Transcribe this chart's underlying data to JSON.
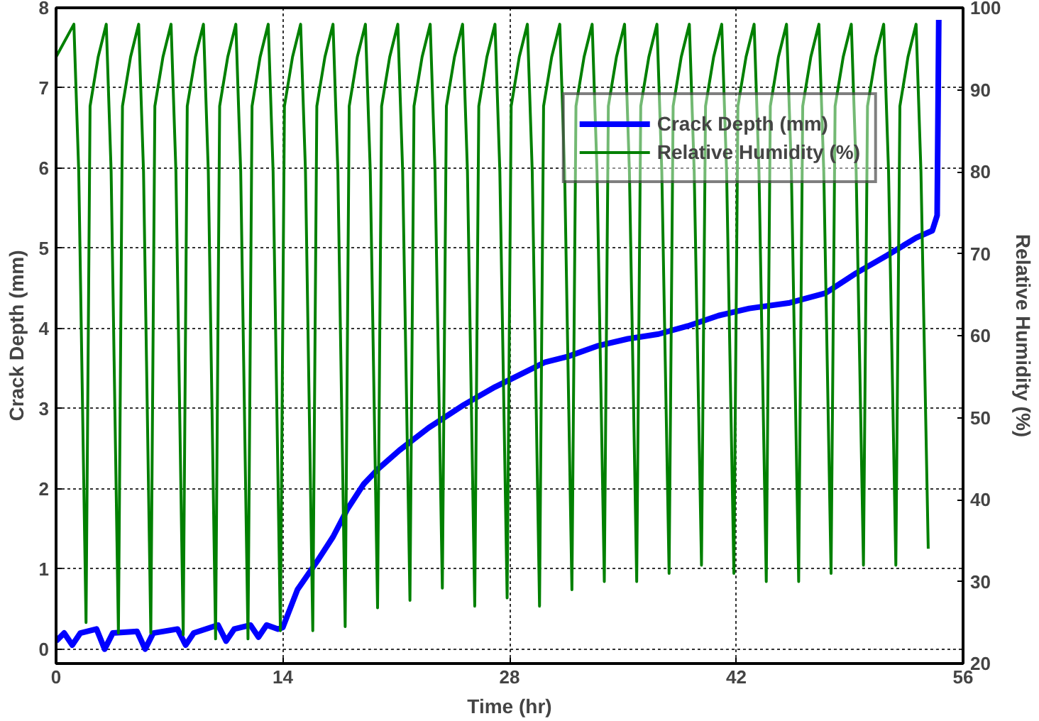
{
  "chart_data": {
    "type": "line",
    "xlabel": "Time (hr)",
    "ylabel": "Crack Depth (mm)",
    "y2label": "Relative Humidity (%)",
    "xlim": [
      0,
      56
    ],
    "xticks": [
      0,
      14,
      28,
      42,
      56
    ],
    "ylim": [
      -0.18,
      8
    ],
    "yticks": [
      0,
      1,
      2,
      3,
      4,
      5,
      6,
      7,
      8
    ],
    "y2lim": [
      20,
      100
    ],
    "y2ticks": [
      20,
      30,
      40,
      50,
      60,
      70,
      80,
      90,
      100
    ],
    "grid": true,
    "legend": "top right",
    "marker": "none",
    "line_style": "solid",
    "series": [
      {
        "name": "Crack Depth (mm)",
        "color": "#0000ff",
        "x": [
          0,
          0.5,
          1,
          1.5,
          2.5,
          3,
          3.5,
          5,
          5.5,
          6,
          7.5,
          8,
          8.5,
          10,
          10.5,
          11,
          12,
          12.5,
          13,
          13.7,
          14,
          14.9,
          16.2,
          17.1,
          18,
          19,
          19.9,
          21.2,
          23,
          25.2,
          27.1,
          29,
          30.2,
          31.6,
          33.4,
          35.3,
          37.2,
          39,
          40.9,
          42.8,
          45.3,
          47.5,
          49.4,
          51.3,
          53.1,
          54.1,
          54.4,
          54.5
        ],
        "values": [
          0.1,
          0.2,
          0.05,
          0.2,
          0.25,
          0,
          0.2,
          0.22,
          0,
          0.2,
          0.25,
          0.05,
          0.2,
          0.3,
          0.1,
          0.25,
          0.3,
          0.15,
          0.3,
          0.25,
          0.27,
          0.74,
          1.12,
          1.4,
          1.75,
          2.06,
          2.25,
          2.48,
          2.76,
          3.05,
          3.27,
          3.46,
          3.58,
          3.65,
          3.78,
          3.87,
          3.93,
          4.03,
          4.16,
          4.25,
          4.32,
          4.44,
          4.69,
          4.91,
          5.13,
          5.22,
          5.41,
          7.85
        ]
      },
      {
        "name": "Relative Humidity (%)",
        "color": "#008000",
        "axis": "y2",
        "x": [
          0,
          1.1,
          1.4,
          1.85,
          2.1,
          2.6,
          3.1,
          3.4,
          3.85,
          4.1,
          4.6,
          5.1,
          5.4,
          5.85,
          6.1,
          6.6,
          7.1,
          7.4,
          7.85,
          8.1,
          8.6,
          9.1,
          9.4,
          9.85,
          10.1,
          10.6,
          11.1,
          11.4,
          11.85,
          12.1,
          12.6,
          13.1,
          13.4,
          13.85,
          14.1,
          14.6,
          15.1,
          15.4,
          15.85,
          16.1,
          16.6,
          17.1,
          17.4,
          17.85,
          18.1,
          18.6,
          19.1,
          19.4,
          19.85,
          20.1,
          20.6,
          21.1,
          21.4,
          21.85,
          22.1,
          22.6,
          23.1,
          23.4,
          23.85,
          24.1,
          24.6,
          25.1,
          25.4,
          25.85,
          26.1,
          26.6,
          27.1,
          27.4,
          27.85,
          28.1,
          28.6,
          29.1,
          29.4,
          29.85,
          30.1,
          30.6,
          31.1,
          31.4,
          31.85,
          32.1,
          32.6,
          33.1,
          33.4,
          33.85,
          34.1,
          34.6,
          35.1,
          35.4,
          35.85,
          36.1,
          36.6,
          37.1,
          37.4,
          37.85,
          38.1,
          38.6,
          39.1,
          39.4,
          39.85,
          40.1,
          40.6,
          41.1,
          41.4,
          41.85,
          42.1,
          42.6,
          43.1,
          43.4,
          43.85,
          44.1,
          44.6,
          45.1,
          45.4,
          45.85,
          46.1,
          46.6,
          47.1,
          47.4,
          47.85,
          48.1,
          48.6,
          49.1,
          49.4,
          49.85,
          50.1,
          50.6,
          51.1,
          51.4,
          51.85,
          52.1,
          52.6,
          53.1,
          53.4,
          53.85
        ],
        "values": [
          94,
          98,
          80,
          25,
          88,
          94,
          98,
          80,
          23.7,
          88,
          94,
          98,
          80,
          23.7,
          88,
          94,
          98,
          80,
          23.5,
          88,
          94,
          98,
          80,
          23,
          88,
          94,
          98,
          80,
          23,
          88,
          94,
          98,
          80,
          24,
          88,
          94,
          98,
          80,
          24,
          88,
          94,
          98,
          80,
          24.5,
          88,
          94,
          98,
          80,
          26.8,
          88,
          94,
          98,
          80,
          27.7,
          88,
          94,
          98,
          80,
          29.2,
          88,
          94,
          98,
          80,
          27,
          88,
          94,
          98,
          80,
          28,
          88,
          94,
          98,
          80,
          27,
          88,
          94,
          98,
          80,
          29,
          88,
          94,
          98,
          80,
          30,
          88,
          94,
          98,
          80,
          30,
          88,
          94,
          98,
          80,
          31,
          88,
          94,
          98,
          80,
          32,
          88,
          94,
          98,
          80,
          31,
          88,
          94,
          98,
          80,
          30,
          88,
          94,
          98,
          80,
          30,
          88,
          94,
          98,
          80,
          31,
          88,
          94,
          98,
          80,
          32,
          88,
          94,
          98,
          80,
          32,
          88,
          94,
          98,
          80,
          34
        ]
      }
    ]
  }
}
